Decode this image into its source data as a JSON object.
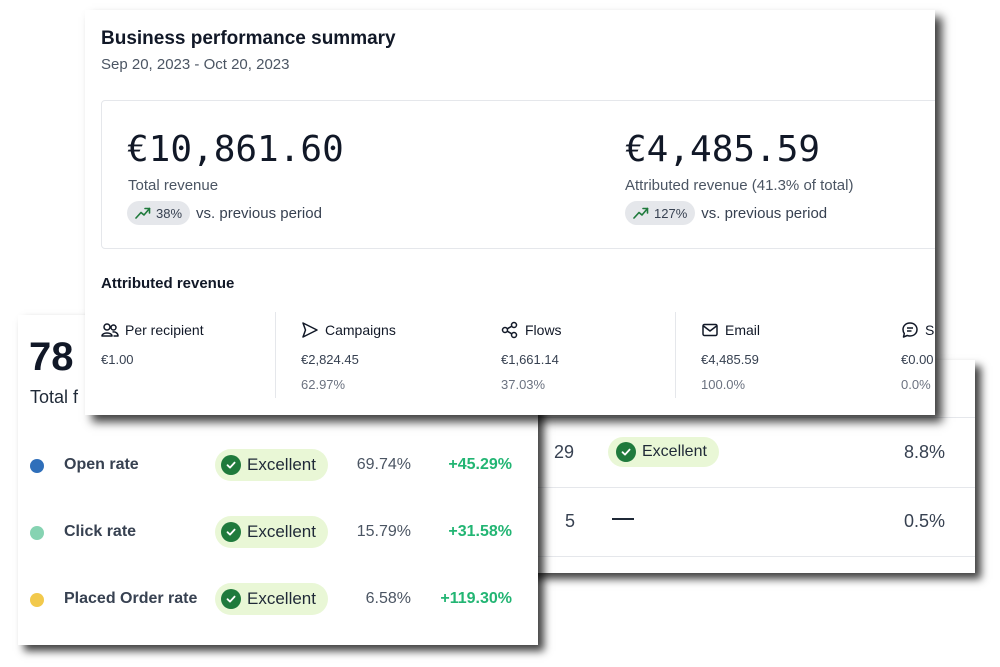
{
  "back_right": {
    "rows": [
      {
        "count": "29",
        "status": "Excellent",
        "pct": "8.8%"
      },
      {
        "count": "5",
        "pct": "0.5%"
      }
    ]
  },
  "back_left": {
    "big_number": "78",
    "label_partial": "Total f",
    "rows": [
      {
        "label": "Open rate",
        "status": "Excellent",
        "value": "69.74%",
        "change": "+45.29%",
        "dot_color": "#2f6fba"
      },
      {
        "label": "Click rate",
        "status": "Excellent",
        "value": "15.79%",
        "change": "+31.58%",
        "dot_color": "#86d3b2"
      },
      {
        "label": "Placed Order rate",
        "status": "Excellent",
        "value": "6.58%",
        "change": "+119.30%",
        "dot_color": "#f2c94c"
      }
    ]
  },
  "summary": {
    "title": "Business performance summary",
    "date_range": "Sep 20, 2023 - Oct 20, 2023",
    "total_revenue": {
      "amount": "€10,861.60",
      "label": "Total revenue",
      "trend_pct": "38%",
      "trend_text": "vs. previous period"
    },
    "attributed_revenue": {
      "amount": "€4,485.59",
      "label": "Attributed revenue (41.3% of total)",
      "trend_pct": "127%",
      "trend_text": "vs. previous period"
    },
    "attributed_section_title": "Attributed revenue",
    "metrics": [
      {
        "label": "Per recipient",
        "icon": "users-icon",
        "value": "€1.00",
        "sub": ""
      },
      {
        "label": "Campaigns",
        "icon": "send-icon",
        "value": "€2,824.45",
        "sub": "62.97%"
      },
      {
        "label": "Flows",
        "icon": "flows-icon",
        "value": "€1,661.14",
        "sub": "37.03%"
      },
      {
        "label": "Email",
        "icon": "mail-icon",
        "value": "€4,485.59",
        "sub": "100.0%"
      },
      {
        "label": "SM",
        "icon": "sms-icon",
        "value": "€0.00",
        "sub": "0.0%"
      }
    ]
  },
  "colors": {
    "trend_green": "#1f7a3c",
    "change_green": "#22b573",
    "badge_bg": "#e9f7d6"
  }
}
